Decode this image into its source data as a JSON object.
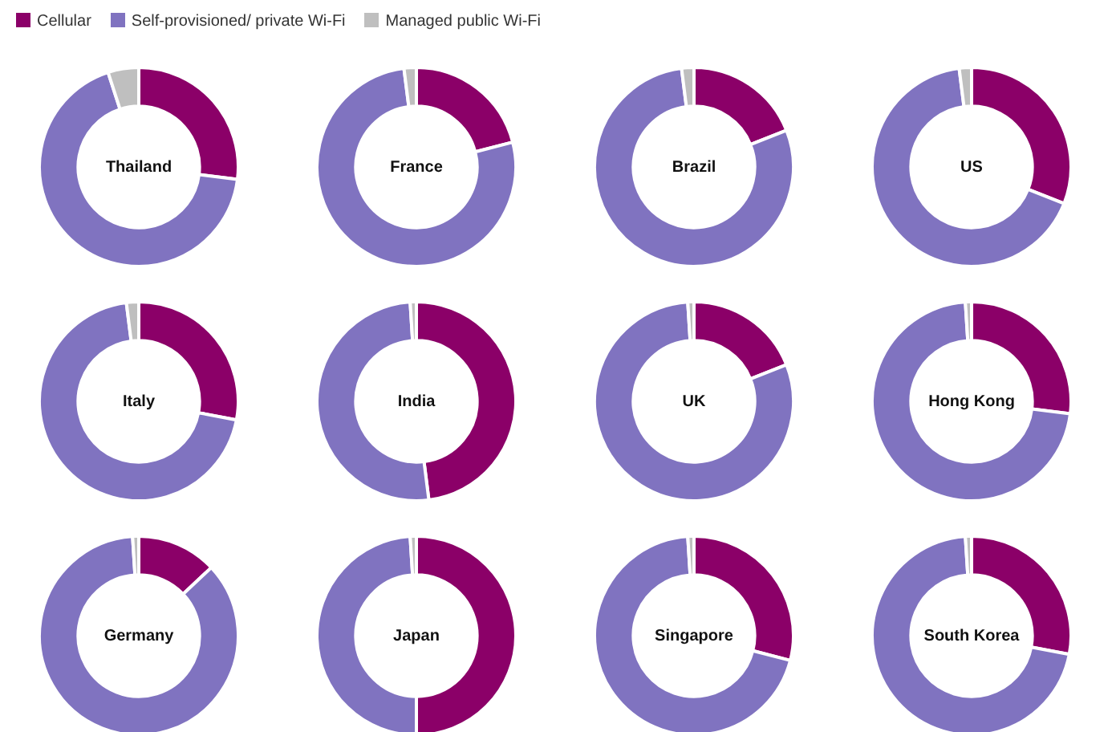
{
  "chart_data": [
    {
      "type": "donut",
      "title": "Thailand",
      "categories": [
        "Cellular",
        "Self-provisioned/ private Wi-Fi",
        "Managed public Wi-Fi"
      ],
      "values": [
        27,
        68,
        5
      ],
      "colors": [
        "#8b0068",
        "#8073c0",
        "#bfbfbf"
      ],
      "legend": "top"
    },
    {
      "type": "donut",
      "title": "France",
      "categories": [
        null,
        null,
        null
      ],
      "values": [
        21,
        77,
        2
      ],
      "colors": [
        "#8b0068",
        "#8073c0",
        "#bfbfbf"
      ]
    },
    {
      "type": "donut",
      "title": "Brazil",
      "categories": [
        null,
        null,
        null
      ],
      "values": [
        19,
        79,
        2
      ],
      "colors": [
        "#8b0068",
        "#8073c0",
        "#bfbfbf"
      ]
    },
    {
      "type": "donut",
      "title": "US",
      "categories": [
        null,
        null,
        null
      ],
      "values": [
        31,
        67,
        2
      ],
      "colors": [
        "#8b0068",
        "#8073c0",
        "#bfbfbf"
      ]
    },
    {
      "type": "donut",
      "title": "Italy",
      "categories": [
        null,
        null,
        null
      ],
      "values": [
        28,
        70,
        2
      ],
      "colors": [
        "#8b0068",
        "#8073c0",
        "#bfbfbf"
      ]
    },
    {
      "type": "donut",
      "title": "India",
      "categories": [
        null,
        null,
        null
      ],
      "values": [
        48,
        51,
        1
      ],
      "colors": [
        "#8b0068",
        "#8073c0",
        "#bfbfbf"
      ]
    },
    {
      "type": "donut",
      "title": "UK",
      "categories": [
        null,
        null,
        null
      ],
      "values": [
        19,
        80,
        1
      ],
      "colors": [
        "#8b0068",
        "#8073c0",
        "#bfbfbf"
      ]
    },
    {
      "type": "donut",
      "title": "Hong Kong",
      "categories": [
        null,
        null,
        null
      ],
      "values": [
        27,
        72,
        1
      ],
      "colors": [
        "#8b0068",
        "#8073c0",
        "#bfbfbf"
      ]
    },
    {
      "type": "donut",
      "title": "Germany",
      "categories": [
        null,
        null,
        null
      ],
      "values": [
        13,
        86,
        1
      ],
      "colors": [
        "#8b0068",
        "#8073c0",
        "#bfbfbf"
      ]
    },
    {
      "type": "donut",
      "title": "Japan",
      "categories": [
        null,
        null,
        null
      ],
      "values": [
        50,
        49,
        1
      ],
      "colors": [
        "#8b0068",
        "#8073c0",
        "#bfbfbf"
      ]
    },
    {
      "type": "donut",
      "title": "Singapore",
      "categories": [
        null,
        null,
        null
      ],
      "values": [
        29,
        70,
        1
      ],
      "colors": [
        "#8b0068",
        "#8073c0",
        "#bfbfbf"
      ]
    },
    {
      "type": "donut",
      "title": "South Korea",
      "categories": [
        null,
        null,
        null
      ],
      "values": [
        28,
        71,
        1
      ],
      "colors": [
        "#8b0068",
        "#8073c0",
        "#bfbfbf"
      ]
    }
  ]
}
